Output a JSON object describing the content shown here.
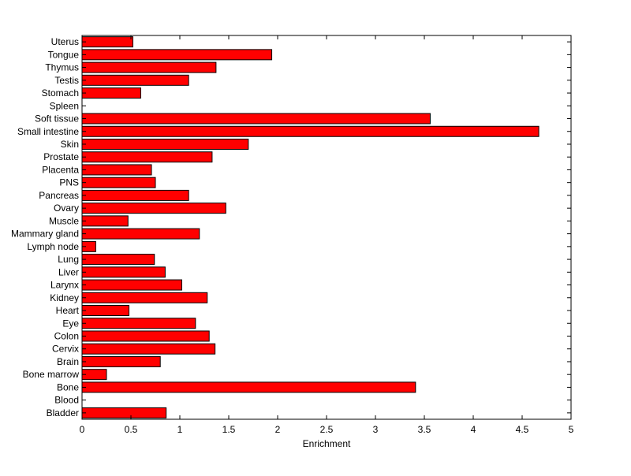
{
  "chart_data": {
    "type": "bar",
    "orientation": "horizontal",
    "categories": [
      "Bladder",
      "Blood",
      "Bone",
      "Bone marrow",
      "Brain",
      "Cervix",
      "Colon",
      "Eye",
      "Heart",
      "Kidney",
      "Larynx",
      "Liver",
      "Lung",
      "Lymph node",
      "Mammary gland",
      "Muscle",
      "Ovary",
      "Pancreas",
      "PNS",
      "Placenta",
      "Prostate",
      "Skin",
      "Small intestine",
      "Soft tissue",
      "Spleen",
      "Stomach",
      "Testis",
      "Thymus",
      "Tongue",
      "Uterus"
    ],
    "values": [
      0.86,
      0,
      3.41,
      0.25,
      0.8,
      1.36,
      1.3,
      1.16,
      0.48,
      1.28,
      1.02,
      0.85,
      0.74,
      0.14,
      1.2,
      0.47,
      1.47,
      1.09,
      0.75,
      0.71,
      1.33,
      1.7,
      4.67,
      3.56,
      0,
      0.6,
      1.09,
      1.37,
      1.94,
      0.52
    ],
    "title": "",
    "xlabel": "Enrichment",
    "ylabel": "",
    "xlim": [
      0,
      5
    ],
    "xticks": [
      "0",
      "0.5",
      "1",
      "1.5",
      "2",
      "2.5",
      "3",
      "3.5",
      "4",
      "4.5",
      "5"
    ],
    "grid": false,
    "bar_color": "#ff0000",
    "bar_edge_color": "#000000"
  }
}
